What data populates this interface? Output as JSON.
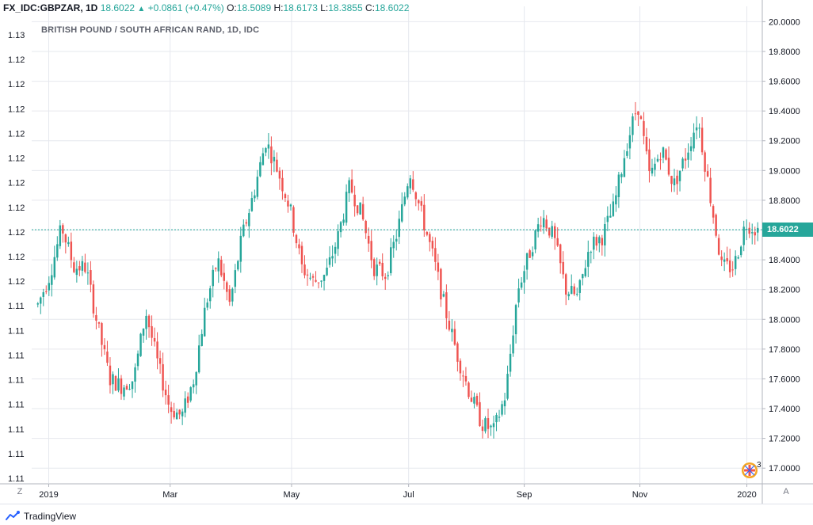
{
  "header": {
    "symbol": "FX_IDC:GBPZAR, 1D",
    "last": "18.6022",
    "change": "+0.0861 (+0.47%)",
    "o_label": "O:",
    "o": "18.5089",
    "h_label": "H:",
    "h": "18.6173",
    "l_label": "L:",
    "l": "18.3855",
    "c_label": "C:",
    "c": "18.6022"
  },
  "chart_title": "BRITISH POUND / SOUTH AFRICAN RAND, 1D, IDC",
  "footer": {
    "brand": "TradingView",
    "left_button": "Z",
    "right_button": "A",
    "events_badge": "3"
  },
  "colors": {
    "up": "#26a69a",
    "down": "#ef5350",
    "grid": "#e6e8ee",
    "axis_text": "#131722"
  },
  "chart_data": {
    "type": "candlestick",
    "title": "BRITISH POUND / SOUTH AFRICAN RAND, 1D, IDC",
    "ylim": [
      16.9,
      20.05
    ],
    "y_ticks": [
      "17.0000",
      "17.2000",
      "17.4000",
      "17.6000",
      "17.8000",
      "18.0000",
      "18.2000",
      "18.4000",
      "18.6000",
      "18.8000",
      "19.0000",
      "19.2000",
      "19.4000",
      "19.6000",
      "19.8000",
      "20.0000"
    ],
    "left_axis_ticks": [
      "1.13",
      "1.12",
      "1.12",
      "1.12",
      "1.12",
      "1.12",
      "1.12",
      "1.12",
      "1.12",
      "1.12",
      "1.12",
      "1.11",
      "1.11",
      "1.11",
      "1.11",
      "1.11",
      "1.11",
      "1.11",
      "1.11"
    ],
    "x_ticks": [
      "2019",
      "Mar",
      "May",
      "Jul",
      "Sep",
      "Nov",
      "2020"
    ],
    "current_price": 18.6022,
    "current_price_label": "18.6022",
    "path": [
      [
        0,
        18.1
      ],
      [
        6,
        18.3
      ],
      [
        12,
        18.62
      ],
      [
        18,
        18.35
      ],
      [
        24,
        18.35
      ],
      [
        30,
        17.95
      ],
      [
        36,
        17.6
      ],
      [
        42,
        17.55
      ],
      [
        48,
        17.6
      ],
      [
        54,
        18.05
      ],
      [
        60,
        17.7
      ],
      [
        66,
        17.4
      ],
      [
        72,
        17.35
      ],
      [
        78,
        17.6
      ],
      [
        84,
        18.1
      ],
      [
        90,
        18.4
      ],
      [
        96,
        18.1
      ],
      [
        102,
        18.55
      ],
      [
        108,
        18.85
      ],
      [
        114,
        19.2
      ],
      [
        120,
        19.0
      ],
      [
        126,
        18.75
      ],
      [
        132,
        18.35
      ],
      [
        138,
        18.25
      ],
      [
        144,
        18.3
      ],
      [
        150,
        18.55
      ],
      [
        156,
        18.9
      ],
      [
        162,
        18.7
      ],
      [
        168,
        18.35
      ],
      [
        174,
        18.3
      ],
      [
        180,
        18.6
      ],
      [
        186,
        19.0
      ],
      [
        192,
        18.7
      ],
      [
        198,
        18.4
      ],
      [
        204,
        18.05
      ],
      [
        210,
        17.75
      ],
      [
        216,
        17.5
      ],
      [
        222,
        17.3
      ],
      [
        228,
        17.25
      ],
      [
        234,
        17.5
      ],
      [
        240,
        18.2
      ],
      [
        246,
        18.45
      ],
      [
        252,
        18.7
      ],
      [
        258,
        18.55
      ],
      [
        264,
        18.2
      ],
      [
        270,
        18.15
      ],
      [
        276,
        18.5
      ],
      [
        282,
        18.55
      ],
      [
        288,
        18.75
      ],
      [
        294,
        19.15
      ],
      [
        300,
        19.45
      ],
      [
        306,
        18.95
      ],
      [
        312,
        19.15
      ],
      [
        318,
        18.9
      ],
      [
        324,
        19.1
      ],
      [
        330,
        19.35
      ],
      [
        336,
        18.85
      ],
      [
        342,
        18.35
      ],
      [
        348,
        18.35
      ],
      [
        354,
        18.65
      ],
      [
        360,
        18.6
      ]
    ],
    "candle_count": 260
  }
}
